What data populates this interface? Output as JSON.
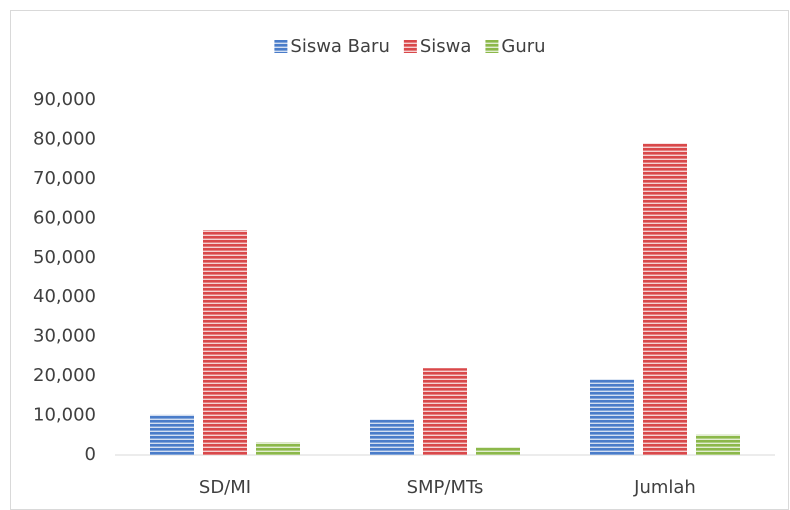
{
  "chart_data": {
    "type": "bar",
    "categories": [
      "SD/MI",
      "SMP/MTs",
      "Jumlah"
    ],
    "series": [
      {
        "name": "Siswa Baru",
        "color": "#4a7cc9",
        "values": [
          10200,
          9000,
          19200
        ]
      },
      {
        "name": "Siswa",
        "color": "#d9484a",
        "values": [
          57000,
          22000,
          79000
        ]
      },
      {
        "name": "Guru",
        "color": "#8cb84a",
        "values": [
          3200,
          2000,
          5200
        ]
      }
    ],
    "ylim": [
      0,
      90000
    ],
    "yticks": [
      0,
      {
        "value": 10000,
        "label": "10,000"
      },
      {
        "value": 20000,
        "label": "20,000"
      },
      {
        "value": 30000,
        "label": "30,000"
      },
      {
        "value": 40000,
        "label": "40,000"
      },
      {
        "value": 50000,
        "label": "50,000"
      },
      {
        "value": 60000,
        "label": "60,000"
      },
      {
        "value": 70000,
        "label": "70,000"
      },
      {
        "value": 80000,
        "label": "80,000"
      },
      {
        "value": 90000,
        "label": "90,000"
      }
    ],
    "legend": "top"
  }
}
